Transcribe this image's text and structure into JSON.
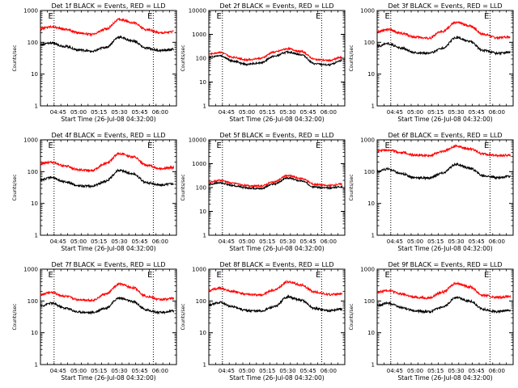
{
  "chart_data": [
    {
      "type": "line",
      "title": "Det 1f BLACK = Events, RED = LLD",
      "xlabel": "Start Time (26-Jul-08 04:32:00)",
      "ylabel": "Counts/sec",
      "yscale": "log",
      "ylim": [
        1,
        1000
      ],
      "y_ticks": [
        "1",
        "10",
        "100",
        "1000"
      ],
      "xlim": [
        "04:32",
        "06:12"
      ],
      "x_ticks": [
        "04:45",
        "05:00",
        "05:15",
        "05:30",
        "05:45",
        "06:00"
      ],
      "markers": [
        {
          "label": "E",
          "x": "04:42"
        },
        {
          "label": "E",
          "x": "05:55"
        }
      ],
      "series": [
        {
          "color": "#ff0000",
          "x": [
            "04:32",
            "04:40",
            "04:50",
            "05:00",
            "05:10",
            "05:20",
            "05:30",
            "05:40",
            "05:50",
            "06:00",
            "06:10"
          ],
          "values": [
            270,
            310,
            260,
            200,
            175,
            260,
            520,
            420,
            250,
            200,
            215
          ]
        },
        {
          "color": "#000000",
          "x": [
            "04:32",
            "04:40",
            "04:50",
            "05:00",
            "05:10",
            "05:20",
            "05:30",
            "05:40",
            "05:50",
            "06:00",
            "06:10"
          ],
          "values": [
            85,
            95,
            75,
            58,
            52,
            70,
            145,
            110,
            65,
            55,
            60
          ]
        }
      ]
    },
    {
      "type": "line",
      "title": "Det 2f BLACK = Events, RED = LLD",
      "xlabel": "Start Time (26-Jul-08 04:32:00)",
      "ylabel": "Counts/sec",
      "yscale": "log",
      "ylim": [
        1,
        10000
      ],
      "y_ticks": [
        "1",
        "10",
        "100",
        "1000",
        "10000"
      ],
      "xlim": [
        "04:32",
        "06:12"
      ],
      "x_ticks": [
        "04:45",
        "05:00",
        "05:15",
        "05:30",
        "05:45",
        "06:00"
      ],
      "markers": [
        {
          "label": "E",
          "x": "04:42"
        },
        {
          "label": "E",
          "x": "05:55"
        }
      ],
      "series": [
        {
          "color": "#ff0000",
          "x": [
            "04:32",
            "04:40",
            "04:50",
            "05:00",
            "05:10",
            "05:20",
            "05:30",
            "05:40",
            "05:50",
            "06:00",
            "06:10"
          ],
          "values": [
            150,
            175,
            110,
            85,
            100,
            180,
            250,
            190,
            90,
            80,
            110
          ]
        },
        {
          "color": "#000000",
          "x": [
            "04:32",
            "04:40",
            "04:50",
            "05:00",
            "05:10",
            "05:20",
            "05:30",
            "05:40",
            "05:50",
            "06:00",
            "06:10"
          ],
          "values": [
            110,
            130,
            75,
            55,
            65,
            120,
            180,
            140,
            58,
            52,
            80
          ]
        }
      ]
    },
    {
      "type": "line",
      "title": "Det 3f BLACK = Events, RED = LLD",
      "xlabel": "Start Time (26-Jul-08 04:32:00)",
      "ylabel": "Counts/sec",
      "yscale": "log",
      "ylim": [
        1,
        1000
      ],
      "y_ticks": [
        "1",
        "10",
        "100",
        "1000"
      ],
      "xlim": [
        "04:32",
        "06:12"
      ],
      "x_ticks": [
        "04:45",
        "05:00",
        "05:15",
        "05:30",
        "05:45",
        "06:00"
      ],
      "markers": [
        {
          "label": "E",
          "x": "04:42"
        },
        {
          "label": "E",
          "x": "05:55"
        }
      ],
      "series": [
        {
          "color": "#ff0000",
          "x": [
            "04:32",
            "04:40",
            "04:50",
            "05:00",
            "05:10",
            "05:20",
            "05:30",
            "05:40",
            "05:50",
            "06:00",
            "06:10"
          ],
          "values": [
            220,
            250,
            190,
            145,
            135,
            220,
            420,
            330,
            180,
            140,
            150
          ]
        },
        {
          "color": "#000000",
          "x": [
            "04:32",
            "04:40",
            "04:50",
            "05:00",
            "05:10",
            "05:20",
            "05:30",
            "05:40",
            "05:50",
            "06:00",
            "06:10"
          ],
          "values": [
            75,
            90,
            65,
            48,
            45,
            65,
            140,
            105,
            55,
            45,
            50
          ]
        }
      ]
    },
    {
      "type": "line",
      "title": "Det 4f BLACK = Events, RED = LLD",
      "xlabel": "Start Time (26-Jul-08 04:32:00)",
      "ylabel": "Counts/sec",
      "yscale": "log",
      "ylim": [
        1,
        1000
      ],
      "y_ticks": [
        "1",
        "10",
        "100",
        "1000"
      ],
      "xlim": [
        "04:32",
        "06:12"
      ],
      "x_ticks": [
        "04:45",
        "05:00",
        "05:15",
        "05:30",
        "05:45",
        "06:00"
      ],
      "markers": [
        {
          "label": "E",
          "x": "04:42"
        },
        {
          "label": "E",
          "x": "05:55"
        }
      ],
      "series": [
        {
          "color": "#ff0000",
          "x": [
            "04:32",
            "04:40",
            "04:50",
            "05:00",
            "05:10",
            "05:20",
            "05:30",
            "05:40",
            "05:50",
            "06:00",
            "06:10"
          ],
          "values": [
            180,
            200,
            150,
            115,
            110,
            180,
            370,
            290,
            160,
            125,
            135
          ]
        },
        {
          "color": "#000000",
          "x": [
            "04:32",
            "04:40",
            "04:50",
            "05:00",
            "05:10",
            "05:20",
            "05:30",
            "05:40",
            "05:50",
            "06:00",
            "06:10"
          ],
          "values": [
            55,
            65,
            48,
            36,
            35,
            50,
            110,
            85,
            45,
            38,
            42
          ]
        }
      ]
    },
    {
      "type": "line",
      "title": "Det 5f BLACK = Events, RED = LLD",
      "xlabel": "Start Time (26-Jul-08 04:32:00)",
      "ylabel": "Counts/sec",
      "yscale": "log",
      "ylim": [
        1,
        10000
      ],
      "y_ticks": [
        "1",
        "10",
        "100",
        "1000",
        "10000"
      ],
      "xlim": [
        "04:32",
        "06:12"
      ],
      "x_ticks": [
        "04:45",
        "05:00",
        "05:15",
        "05:30",
        "05:45",
        "06:00"
      ],
      "markers": [
        {
          "label": "E",
          "x": "04:42"
        },
        {
          "label": "E",
          "x": "05:55"
        }
      ],
      "series": [
        {
          "color": "#ff0000",
          "x": [
            "04:32",
            "04:40",
            "04:50",
            "05:00",
            "05:10",
            "05:20",
            "05:30",
            "05:40",
            "05:50",
            "06:00",
            "06:10"
          ],
          "values": [
            170,
            200,
            150,
            120,
            115,
            175,
            320,
            240,
            135,
            120,
            140
          ]
        },
        {
          "color": "#000000",
          "x": [
            "04:32",
            "04:40",
            "04:50",
            "05:00",
            "05:10",
            "05:20",
            "05:30",
            "05:40",
            "05:50",
            "06:00",
            "06:10"
          ],
          "values": [
            135,
            160,
            120,
            95,
            92,
            140,
            250,
            190,
            105,
            95,
            110
          ]
        }
      ]
    },
    {
      "type": "line",
      "title": "Det 6f BLACK = Events, RED = LLD",
      "xlabel": "Start Time (26-Jul-08 04:32:00)",
      "ylabel": "Counts/sec",
      "yscale": "log",
      "ylim": [
        1,
        1000
      ],
      "y_ticks": [
        "1",
        "10",
        "100",
        "1000"
      ],
      "xlim": [
        "04:32",
        "06:12"
      ],
      "x_ticks": [
        "04:45",
        "05:00",
        "05:15",
        "05:30",
        "05:45",
        "06:00"
      ],
      "markers": [
        {
          "label": "E",
          "x": "04:42"
        },
        {
          "label": "E",
          "x": "05:55"
        }
      ],
      "series": [
        {
          "color": "#ff0000",
          "x": [
            "04:32",
            "04:40",
            "04:50",
            "05:00",
            "05:10",
            "05:20",
            "05:30",
            "05:40",
            "05:50",
            "06:00",
            "06:10"
          ],
          "values": [
            460,
            480,
            400,
            330,
            320,
            430,
            640,
            520,
            360,
            320,
            330
          ]
        },
        {
          "color": "#000000",
          "x": [
            "04:32",
            "04:40",
            "04:50",
            "05:00",
            "05:10",
            "05:20",
            "05:30",
            "05:40",
            "05:50",
            "06:00",
            "06:10"
          ],
          "values": [
            100,
            120,
            85,
            65,
            63,
            90,
            170,
            130,
            75,
            65,
            70
          ]
        }
      ]
    },
    {
      "type": "line",
      "title": "Det 7f BLACK = Events, RED = LLD",
      "xlabel": "Start Time (26-Jul-08 04:32:00)",
      "ylabel": "Counts/sec",
      "yscale": "log",
      "ylim": [
        1,
        1000
      ],
      "y_ticks": [
        "1",
        "10",
        "100",
        "1000"
      ],
      "xlim": [
        "04:32",
        "06:12"
      ],
      "x_ticks": [
        "04:45",
        "05:00",
        "05:15",
        "05:30",
        "05:45",
        "06:00"
      ],
      "markers": [
        {
          "label": "E",
          "x": "04:42"
        },
        {
          "label": "E",
          "x": "05:55"
        }
      ],
      "series": [
        {
          "color": "#ff0000",
          "x": [
            "04:32",
            "04:40",
            "04:50",
            "05:00",
            "05:10",
            "05:20",
            "05:30",
            "05:40",
            "05:50",
            "06:00",
            "06:10"
          ],
          "values": [
            160,
            185,
            140,
            110,
            105,
            165,
            340,
            260,
            140,
            110,
            120
          ]
        },
        {
          "color": "#000000",
          "x": [
            "04:32",
            "04:40",
            "04:50",
            "05:00",
            "05:10",
            "05:20",
            "05:30",
            "05:40",
            "05:50",
            "06:00",
            "06:10"
          ],
          "values": [
            70,
            85,
            60,
            45,
            43,
            60,
            125,
            95,
            52,
            43,
            48
          ]
        }
      ]
    },
    {
      "type": "line",
      "title": "Det 8f BLACK = Events, RED = LLD",
      "xlabel": "Start Time (26-Jul-08 04:32:00)",
      "ylabel": "Counts/sec",
      "yscale": "log",
      "ylim": [
        1,
        1000
      ],
      "y_ticks": [
        "1",
        "10",
        "100",
        "1000"
      ],
      "xlim": [
        "04:32",
        "06:12"
      ],
      "x_ticks": [
        "04:45",
        "05:00",
        "05:15",
        "05:30",
        "05:45",
        "06:00"
      ],
      "markers": [
        {
          "label": "E",
          "x": "04:42"
        },
        {
          "label": "E",
          "x": "05:55"
        }
      ],
      "series": [
        {
          "color": "#ff0000",
          "x": [
            "04:32",
            "04:40",
            "04:50",
            "05:00",
            "05:10",
            "05:20",
            "05:30",
            "05:40",
            "05:50",
            "06:00",
            "06:10"
          ],
          "values": [
            220,
            250,
            200,
            160,
            155,
            220,
            400,
            320,
            190,
            160,
            170
          ]
        },
        {
          "color": "#000000",
          "x": [
            "04:32",
            "04:40",
            "04:50",
            "05:00",
            "05:10",
            "05:20",
            "05:30",
            "05:40",
            "05:50",
            "06:00",
            "06:10"
          ],
          "values": [
            75,
            90,
            65,
            50,
            48,
            65,
            135,
            105,
            58,
            50,
            55
          ]
        }
      ]
    },
    {
      "type": "line",
      "title": "Det 9f BLACK = Events, RED = LLD",
      "xlabel": "Start Time (26-Jul-08 04:32:00)",
      "ylabel": "Counts/sec",
      "yscale": "log",
      "ylim": [
        1,
        1000
      ],
      "y_ticks": [
        "1",
        "10",
        "100",
        "1000"
      ],
      "xlim": [
        "04:32",
        "06:12"
      ],
      "x_ticks": [
        "04:45",
        "05:00",
        "05:15",
        "05:30",
        "05:45",
        "06:00"
      ],
      "markers": [
        {
          "label": "E",
          "x": "04:42"
        },
        {
          "label": "E",
          "x": "05:55"
        }
      ],
      "series": [
        {
          "color": "#ff0000",
          "x": [
            "04:32",
            "04:40",
            "04:50",
            "05:00",
            "05:10",
            "05:20",
            "05:30",
            "05:40",
            "05:50",
            "06:00",
            "06:10"
          ],
          "values": [
            190,
            215,
            165,
            130,
            125,
            190,
            360,
            280,
            150,
            130,
            140
          ]
        },
        {
          "color": "#000000",
          "x": [
            "04:32",
            "04:40",
            "04:50",
            "05:00",
            "05:10",
            "05:20",
            "05:30",
            "05:40",
            "05:50",
            "06:00",
            "06:10"
          ],
          "values": [
            70,
            85,
            62,
            48,
            46,
            62,
            130,
            100,
            55,
            46,
            50
          ]
        }
      ]
    }
  ]
}
